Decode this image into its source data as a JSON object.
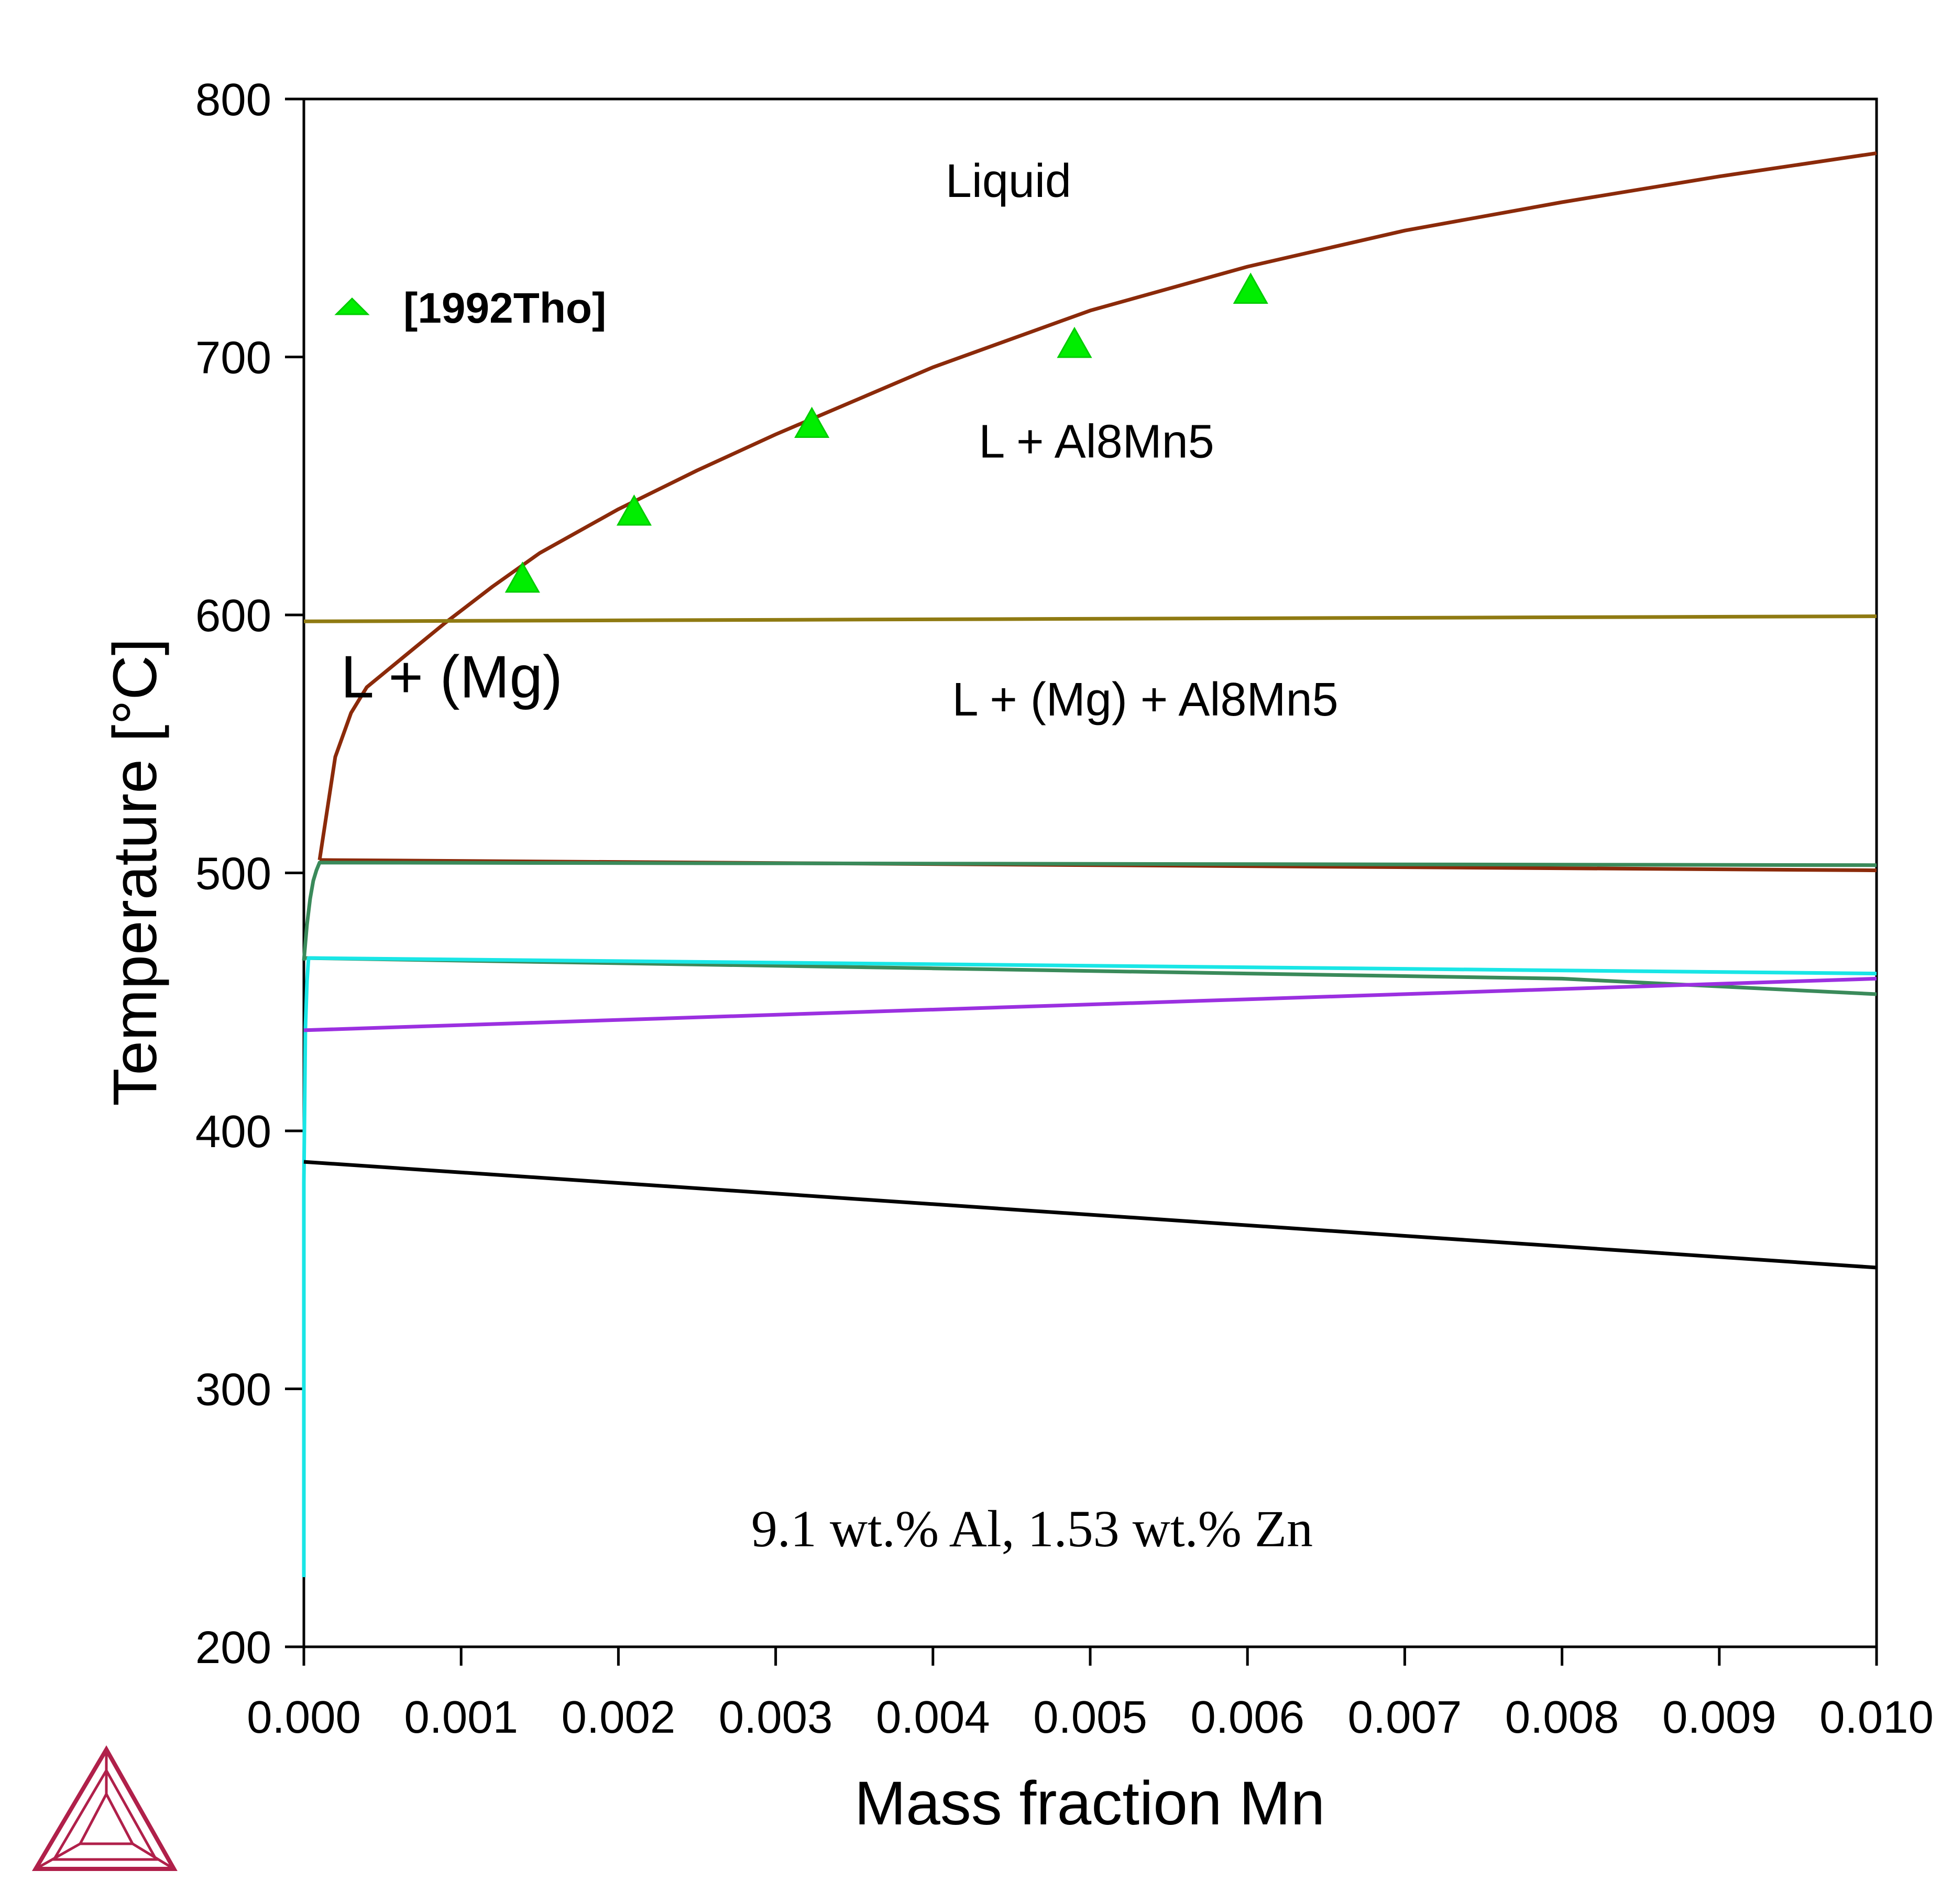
{
  "chart_data": {
    "type": "line",
    "title": "",
    "xlabel": "Mass fraction Mn",
    "ylabel": "Temperature [°C]",
    "xlim": [
      0.0,
      0.01
    ],
    "ylim": [
      200,
      800
    ],
    "x_ticks": [
      "0.000",
      "0.001",
      "0.002",
      "0.003",
      "0.004",
      "0.005",
      "0.006",
      "0.007",
      "0.008",
      "0.009",
      "0.010"
    ],
    "y_ticks": [
      "200",
      "300",
      "400",
      "500",
      "600",
      "700",
      "800"
    ],
    "grid": false,
    "series": [
      {
        "color": "#8B2A0A",
        "x": [
          0.0001,
          0.00015,
          0.0002,
          0.0003,
          0.0004,
          0.0005,
          0.0007,
          0.0009,
          0.0012,
          0.0015,
          0.002,
          0.0025,
          0.003,
          0.004,
          0.005,
          0.006,
          0.007,
          0.008,
          0.009,
          0.01
        ],
        "y": [
          505,
          525,
          545,
          562,
          572,
          577,
          587,
          597,
          611,
          624,
          641,
          656,
          670,
          696,
          718,
          735,
          749,
          760,
          770,
          779
        ]
      },
      {
        "color": "#8B2A0A",
        "x": [
          0.0001,
          0.01
        ],
        "y": [
          505,
          501
        ]
      },
      {
        "color": "#8F7A12",
        "x": [
          0.0,
          0.01
        ],
        "y": [
          597.5,
          599.5
        ]
      },
      {
        "color": "#3A8A5A",
        "x": [
          0.0,
          2e-05,
          4e-05,
          6e-05,
          8e-05,
          0.0001,
          0.01
        ],
        "y": [
          466,
          480,
          490,
          497,
          501,
          504,
          503
        ]
      },
      {
        "color": "#3A8A5A",
        "x": [
          0.0,
          0.002,
          0.004,
          0.006,
          0.008,
          0.01
        ],
        "y": [
          467,
          465,
          463,
          461,
          459,
          453
        ]
      },
      {
        "color": "#19E6E6",
        "x": [
          0.0,
          0.0,
          1e-05,
          2e-05,
          3e-05,
          0.01
        ],
        "y": [
          227,
          380,
          440,
          458,
          467,
          461
        ]
      },
      {
        "color": "#9B30E0",
        "x": [
          0.0,
          0.01
        ],
        "y": [
          439,
          459
        ]
      },
      {
        "color": "#000000",
        "x": [
          0.0,
          0.01
        ],
        "y": [
          388,
          347
        ]
      },
      {
        "name": "[1992Tho]",
        "type": "scatter",
        "marker": "triangle",
        "color": "#00EE00",
        "x": [
          0.00139,
          0.0021,
          0.00323,
          0.0049,
          0.00602
        ],
        "y": [
          614,
          640,
          674,
          705,
          726
        ]
      }
    ],
    "annotations": [
      {
        "text": "Liquid",
        "x": 0.00448,
        "y": 762
      },
      {
        "text": "L + Al8Mn5",
        "x": 0.00504,
        "y": 661
      },
      {
        "text": "L + (Mg)",
        "x": 0.00094,
        "y": 568
      },
      {
        "text": "L + (Mg) + Al8Mn5",
        "x": 0.00535,
        "y": 561
      },
      {
        "text": "9.1 wt.% Al, 1.53 wt.% Zn",
        "x": 0.00463,
        "y": 239
      }
    ],
    "legend": {
      "position": "top-left",
      "entries": [
        "[1992Tho]"
      ]
    }
  },
  "logo": {
    "name": "thermo-calc-logo-icon",
    "color": "#B0204A"
  }
}
